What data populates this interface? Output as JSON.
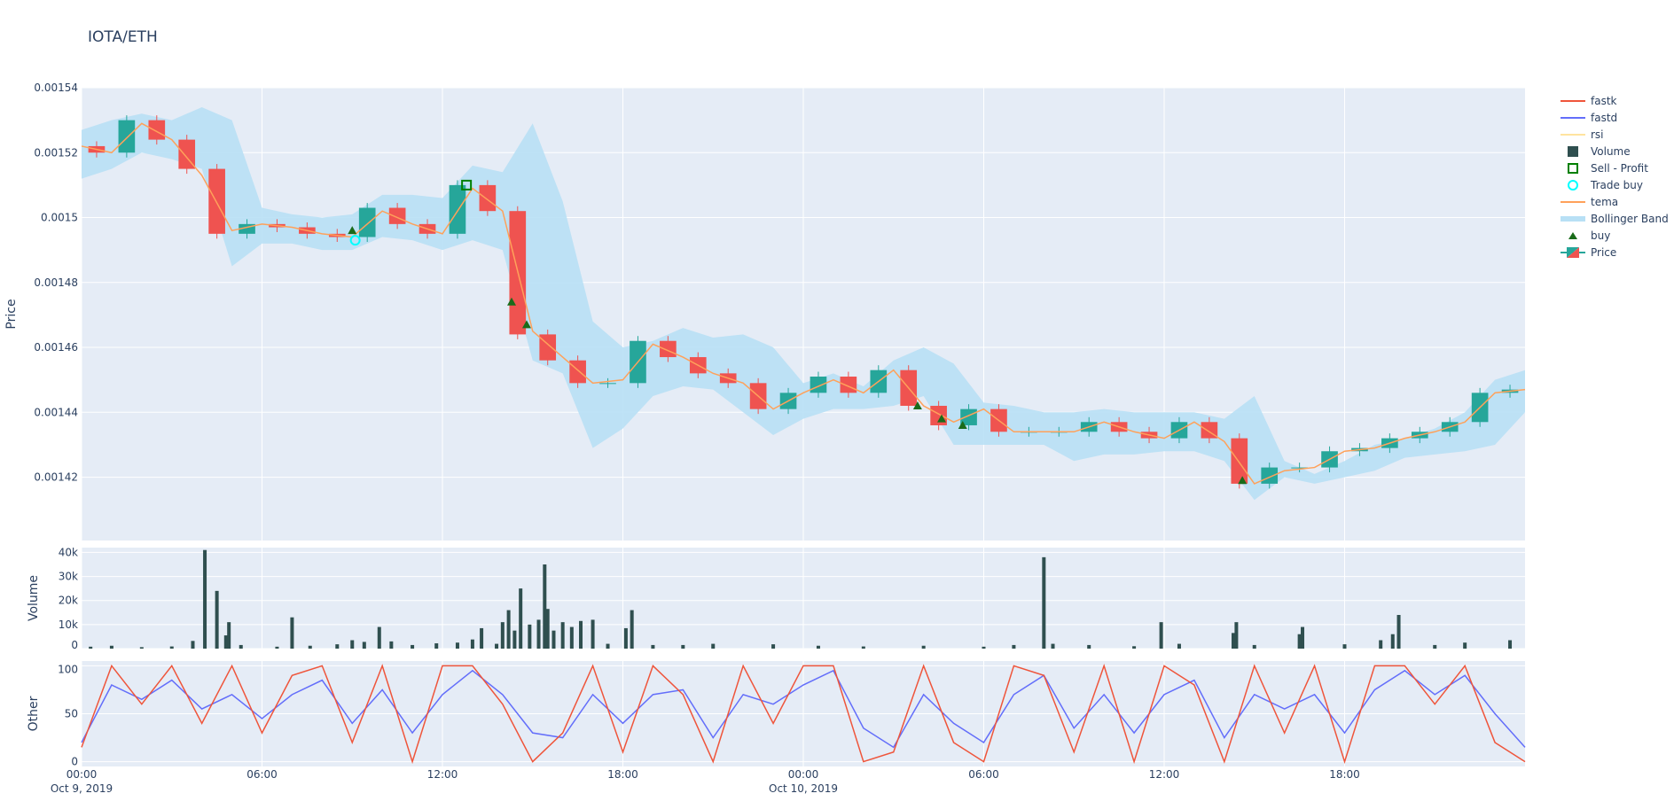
{
  "title": "IOTA/ETH",
  "colors": {
    "bg": "#e5ecf6",
    "up": "#26a69a",
    "down": "#ef5350",
    "fastk": "#ef553b",
    "fastd": "#636efa",
    "rsi": "#ffe4a0",
    "volume": "#2f4f4f",
    "sell": "#008000",
    "tradebuy": "#00ffff",
    "tema": "#ffa15a",
    "bb": "#b8e0f5",
    "buy": "#1a6b1a"
  },
  "chart_data": {
    "type": "candlestick",
    "x_unit": "hours since Oct 9, 2019 00:00",
    "xticks": [
      {
        "h": 0,
        "label": "00:00",
        "sub": "Oct 9, 2019"
      },
      {
        "h": 6,
        "label": "06:00",
        "sub": ""
      },
      {
        "h": 12,
        "label": "12:00",
        "sub": ""
      },
      {
        "h": 18,
        "label": "18:00",
        "sub": ""
      },
      {
        "h": 24,
        "label": "00:00",
        "sub": "Oct 10, 2019"
      },
      {
        "h": 30,
        "label": "06:00",
        "sub": ""
      },
      {
        "h": 36,
        "label": "12:00",
        "sub": ""
      },
      {
        "h": 42,
        "label": "18:00",
        "sub": ""
      }
    ],
    "xlim": [
      0,
      48
    ],
    "price": {
      "ylabel": "Price",
      "ylim": [
        0.0014005,
        0.00154
      ],
      "yticks": [
        0.00142,
        0.00144,
        0.00146,
        0.00148,
        0.0015,
        0.00152,
        0.00154
      ],
      "ytick_labels": [
        "0.00142",
        "0.00144",
        "0.00146",
        "0.00148",
        "0.0015",
        "0.00152",
        "0.00154"
      ],
      "close": [
        0.001522,
        0.00152,
        0.00153,
        0.001524,
        0.001515,
        0.001495,
        0.001498,
        0.001497,
        0.001495,
        0.001494,
        0.001503,
        0.001498,
        0.001495,
        0.00151,
        0.001502,
        0.001464,
        0.001456,
        0.001449,
        0.001449,
        0.001462,
        0.001457,
        0.001452,
        0.001449,
        0.001441,
        0.001446,
        0.001451,
        0.001446,
        0.001453,
        0.001442,
        0.001436,
        0.001441,
        0.001434,
        0.001434,
        0.001434,
        0.001437,
        0.001434,
        0.001432,
        0.001437,
        0.001432,
        0.001418,
        0.001423,
        0.001423,
        0.001428,
        0.001429,
        0.001432,
        0.001434,
        0.001437,
        0.001446,
        0.001447
      ],
      "tema": [
        0.001522,
        0.00152,
        0.001529,
        0.001524,
        0.001513,
        0.001496,
        0.001498,
        0.001497,
        0.001495,
        0.001494,
        0.001502,
        0.001498,
        0.001495,
        0.001509,
        0.001502,
        0.001465,
        0.001457,
        0.001449,
        0.00145,
        0.001461,
        0.001457,
        0.001452,
        0.001449,
        0.001441,
        0.001446,
        0.00145,
        0.001446,
        0.001453,
        0.001442,
        0.001437,
        0.001441,
        0.001434,
        0.001434,
        0.001434,
        0.001437,
        0.001434,
        0.001432,
        0.001437,
        0.001431,
        0.001418,
        0.001422,
        0.001423,
        0.001428,
        0.001429,
        0.001432,
        0.001434,
        0.001437,
        0.001446,
        0.001447
      ],
      "bb_upper": [
        0.001527,
        0.00153,
        0.001532,
        0.00153,
        0.001534,
        0.00153,
        0.001503,
        0.001501,
        0.0015,
        0.001501,
        0.001507,
        0.001507,
        0.001506,
        0.001516,
        0.001514,
        0.001529,
        0.001505,
        0.001468,
        0.00146,
        0.001462,
        0.001466,
        0.001463,
        0.001464,
        0.00146,
        0.001449,
        0.001452,
        0.001448,
        0.001456,
        0.00146,
        0.001455,
        0.001443,
        0.001442,
        0.00144,
        0.00144,
        0.001441,
        0.00144,
        0.00144,
        0.00144,
        0.001438,
        0.001445,
        0.001425,
        0.001421,
        0.001425,
        0.00143,
        0.001432,
        0.001435,
        0.00144,
        0.00145,
        0.001453
      ],
      "bb_lower": [
        0.001512,
        0.001515,
        0.00152,
        0.001518,
        0.001515,
        0.001485,
        0.001492,
        0.001492,
        0.00149,
        0.00149,
        0.001494,
        0.001493,
        0.00149,
        0.001493,
        0.00149,
        0.001456,
        0.001452,
        0.001429,
        0.001435,
        0.001445,
        0.001448,
        0.001447,
        0.00144,
        0.001433,
        0.001438,
        0.001441,
        0.001441,
        0.001442,
        0.001445,
        0.00143,
        0.00143,
        0.00143,
        0.00143,
        0.001425,
        0.001427,
        0.001427,
        0.001428,
        0.001428,
        0.001425,
        0.001413,
        0.00142,
        0.001418,
        0.00142,
        0.001422,
        0.001426,
        0.001427,
        0.001428,
        0.00143,
        0.00144
      ],
      "buy": [
        [
          9.0,
          0.001496
        ],
        [
          14.3,
          0.001474
        ],
        [
          14.8,
          0.001467
        ],
        [
          27.8,
          0.001442
        ],
        [
          28.6,
          0.001438
        ],
        [
          29.3,
          0.001436
        ],
        [
          38.6,
          0.001419
        ]
      ],
      "trade_buy": [
        [
          9.1,
          0.001493
        ]
      ],
      "sell_profit": [
        [
          12.8,
          0.00151
        ]
      ]
    },
    "volume": {
      "ylabel": "Volume",
      "ylim": [
        0,
        42000
      ],
      "yticks": [
        0,
        10000,
        20000,
        30000,
        40000
      ],
      "ytick_labels": [
        "0",
        "10k",
        "20k",
        "30k",
        "40k"
      ],
      "bars": [
        [
          0.3,
          800
        ],
        [
          1,
          1200
        ],
        [
          2,
          600
        ],
        [
          3,
          900
        ],
        [
          3.7,
          3200
        ],
        [
          4.1,
          41000
        ],
        [
          4.5,
          24000
        ],
        [
          4.8,
          5500
        ],
        [
          4.9,
          11000
        ],
        [
          5.3,
          1500
        ],
        [
          6.5,
          800
        ],
        [
          7.0,
          13000
        ],
        [
          7.6,
          1200
        ],
        [
          8.5,
          1800
        ],
        [
          9.0,
          3500
        ],
        [
          9.4,
          2800
        ],
        [
          9.9,
          9000
        ],
        [
          10.3,
          3000
        ],
        [
          11,
          1500
        ],
        [
          11.8,
          2200
        ],
        [
          12.5,
          2500
        ],
        [
          13.0,
          3800
        ],
        [
          13.3,
          8500
        ],
        [
          13.8,
          2000
        ],
        [
          14.0,
          11000
        ],
        [
          14.2,
          16000
        ],
        [
          14.4,
          7500
        ],
        [
          14.6,
          25000
        ],
        [
          14.9,
          10000
        ],
        [
          15.2,
          12000
        ],
        [
          15.4,
          35000
        ],
        [
          15.5,
          16500
        ],
        [
          15.7,
          7500
        ],
        [
          16.0,
          11000
        ],
        [
          16.3,
          9000
        ],
        [
          16.6,
          11500
        ],
        [
          17.0,
          12000
        ],
        [
          17.5,
          2000
        ],
        [
          18.1,
          8500
        ],
        [
          18.3,
          16000
        ],
        [
          19,
          1500
        ],
        [
          20,
          1500
        ],
        [
          21,
          2000
        ],
        [
          23,
          1800
        ],
        [
          24.5,
          1200
        ],
        [
          26,
          900
        ],
        [
          28,
          1200
        ],
        [
          30,
          800
        ],
        [
          31,
          1500
        ],
        [
          32.0,
          38000
        ],
        [
          32.3,
          2000
        ],
        [
          33.5,
          1500
        ],
        [
          35,
          1000
        ],
        [
          35.9,
          11000
        ],
        [
          36.5,
          2000
        ],
        [
          38.3,
          6500
        ],
        [
          38.4,
          11000
        ],
        [
          39,
          1500
        ],
        [
          40.5,
          6000
        ],
        [
          40.6,
          9000
        ],
        [
          42,
          1800
        ],
        [
          43.2,
          3500
        ],
        [
          43.6,
          6000
        ],
        [
          43.8,
          14000
        ],
        [
          45,
          1500
        ],
        [
          46,
          2500
        ],
        [
          47.5,
          3500
        ]
      ]
    },
    "other": {
      "ylabel": "Other",
      "ylim": [
        -5,
        105
      ],
      "yticks": [
        0,
        50,
        100
      ],
      "ytick_labels": [
        "0",
        "50",
        "100"
      ],
      "fastk": [
        15,
        100,
        60,
        100,
        40,
        100,
        30,
        90,
        100,
        20,
        100,
        0,
        100,
        100,
        60,
        0,
        30,
        100,
        10,
        100,
        70,
        0,
        100,
        40,
        100,
        100,
        0,
        10,
        100,
        20,
        0,
        100,
        90,
        10,
        100,
        0,
        100,
        80,
        0,
        100,
        30,
        100,
        0,
        100,
        100,
        60,
        100,
        20,
        0
      ],
      "fastd": [
        20,
        80,
        65,
        85,
        55,
        70,
        45,
        70,
        85,
        40,
        75,
        30,
        70,
        95,
        70,
        30,
        25,
        70,
        40,
        70,
        75,
        25,
        70,
        60,
        80,
        95,
        35,
        15,
        70,
        40,
        20,
        70,
        90,
        35,
        70,
        30,
        70,
        85,
        25,
        70,
        55,
        70,
        30,
        75,
        95,
        70,
        90,
        50,
        15
      ]
    },
    "legend": [
      "fastk",
      "fastd",
      "rsi",
      "Volume",
      "Sell - Profit",
      "Trade buy",
      "tema",
      "Bollinger Band",
      "buy",
      "Price"
    ],
    "legend_position": "right"
  }
}
